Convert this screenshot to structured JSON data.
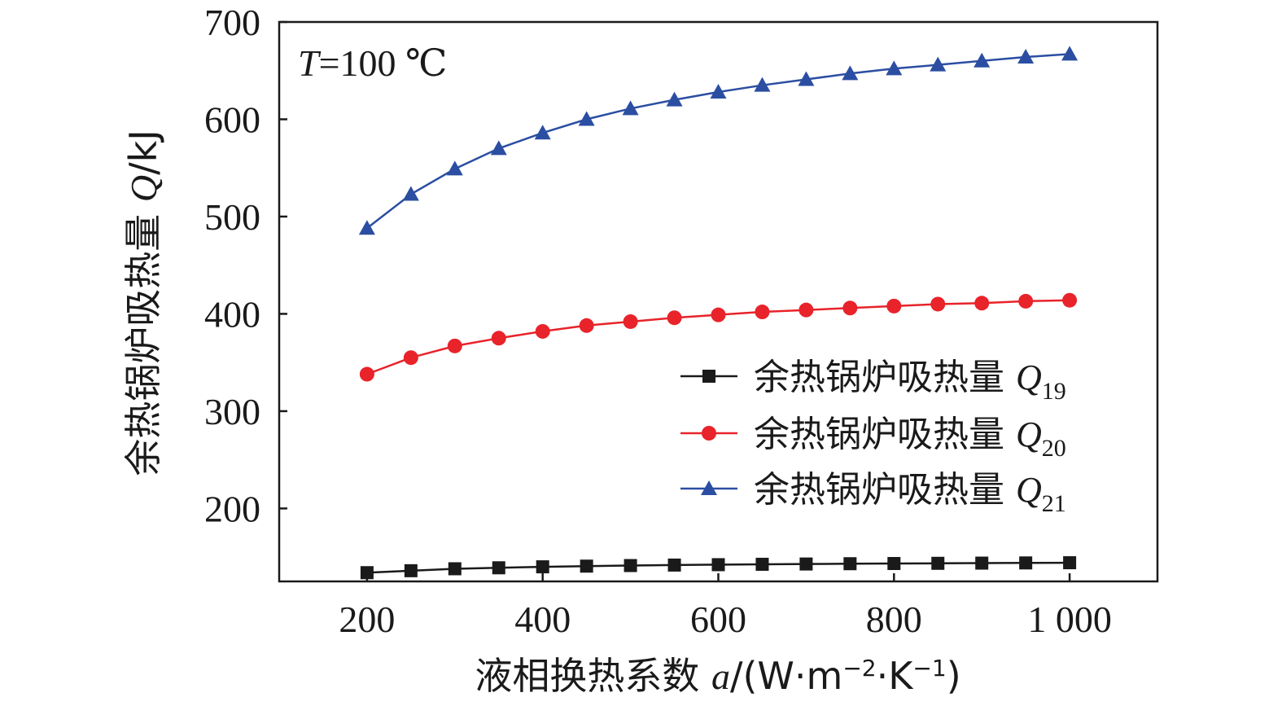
{
  "chart_data": {
    "type": "line",
    "annotation": {
      "var": "T",
      "text": "=100 ℃"
    },
    "xlabel": {
      "prefix": "液相换热系数 ",
      "var": "a",
      "unit_open": "/(W·m",
      "exp1": "−2",
      "mid": "·K",
      "exp2": "−1",
      "unit_close": ")"
    },
    "ylabel": {
      "prefix": "余热锅炉吸热量 ",
      "var": "Q",
      "unit": "/kJ"
    },
    "xlim": [
      100,
      1100
    ],
    "ylim": [
      125,
      700
    ],
    "xticks": [
      200,
      400,
      600,
      800,
      1000
    ],
    "xtick_labels": [
      "200",
      "400",
      "600",
      "800",
      "1 000"
    ],
    "yticks": [
      200,
      300,
      400,
      500,
      600,
      700
    ],
    "ytick_labels": [
      "200",
      "300",
      "400",
      "500",
      "600",
      "700"
    ],
    "x": [
      200,
      250,
      300,
      350,
      400,
      450,
      500,
      550,
      600,
      650,
      700,
      750,
      800,
      850,
      900,
      950,
      1000
    ],
    "legend_position": "center-right",
    "series": [
      {
        "name": "余热锅炉吸热量 Q19",
        "label_text": "余热锅炉吸热量 ",
        "label_var": "Q",
        "label_sub": "19",
        "color": "#1a1a1a",
        "marker": "square",
        "values": [
          134,
          136,
          138,
          139,
          140,
          140.7,
          141.3,
          141.8,
          142.2,
          142.6,
          142.9,
          143.2,
          143.4,
          143.6,
          143.8,
          144,
          144.2
        ]
      },
      {
        "name": "余热锅炉吸热量 Q20",
        "label_text": "余热锅炉吸热量 ",
        "label_var": "Q",
        "label_sub": "20",
        "color": "#e8232a",
        "marker": "circle",
        "values": [
          338,
          355,
          367,
          375,
          382,
          388,
          392,
          396,
          399,
          402,
          404,
          406,
          408,
          410,
          411,
          413,
          414
        ]
      },
      {
        "name": "余热锅炉吸热量 Q21",
        "label_text": "余热锅炉吸热量 ",
        "label_var": "Q",
        "label_sub": "21",
        "color": "#2b4ea2",
        "marker": "triangle",
        "values": [
          488,
          523,
          549,
          570,
          586,
          600,
          611,
          620,
          628,
          635,
          641,
          647,
          652,
          656,
          660,
          664,
          667
        ]
      }
    ]
  }
}
